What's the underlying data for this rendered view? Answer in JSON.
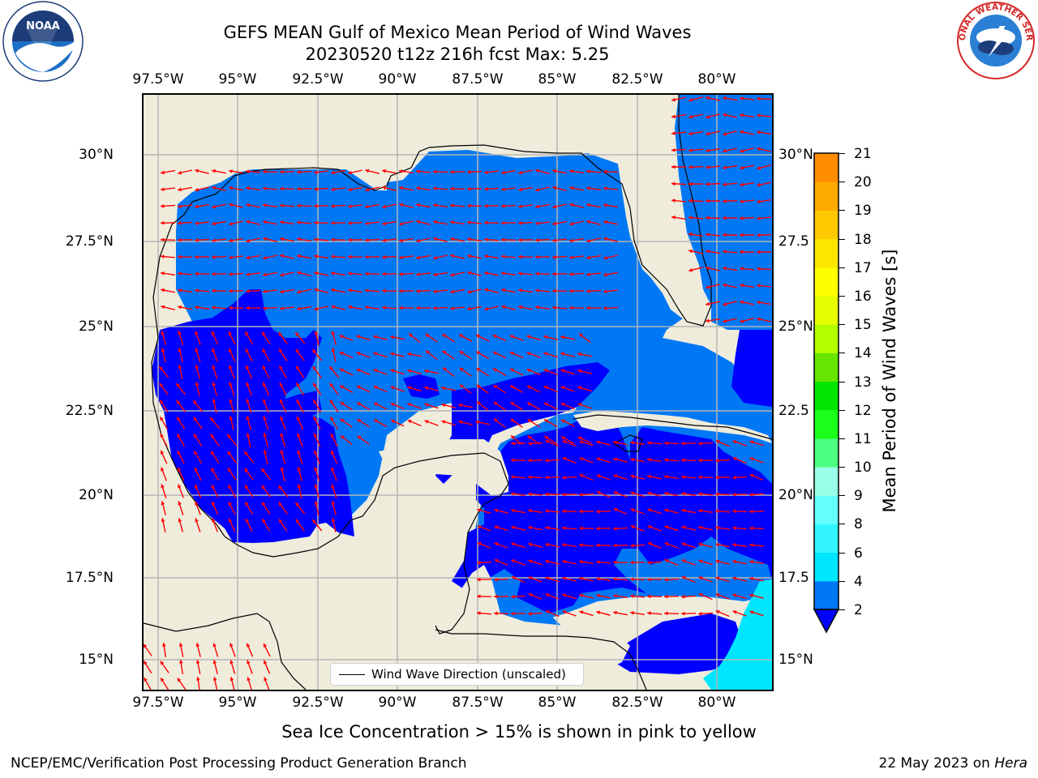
{
  "title": {
    "line1": "GEFS MEAN Gulf of Mexico Mean Period of Wind Waves",
    "line2": "20230520 t12z 216h fcst   Max: 5.25"
  },
  "logos": {
    "left": {
      "name": "noaa-logo",
      "text": "NOAA"
    },
    "right": {
      "name": "national-weather-service-logo",
      "text": "NATIONAL WEATHER SERVICE"
    }
  },
  "map": {
    "lon_labels": [
      "97.5°W",
      "95°W",
      "92.5°W",
      "90°W",
      "87.5°W",
      "85°W",
      "82.5°W",
      "80°W"
    ],
    "lat_labels_left": [
      "30°N",
      "27.5°N",
      "25°N",
      "22.5°N",
      "20°N",
      "17.5°N",
      "15°N"
    ],
    "lat_labels_right": [
      "30°N",
      "27.5",
      "25°N",
      "22.5",
      "20°N",
      "17.5",
      "15°N"
    ],
    "extent": {
      "lon_min": -98.0,
      "lon_max": -78.3,
      "lat_min": 14.1,
      "lat_max": 31.8
    },
    "land_color": "#efecdc",
    "arrow_color": "#ff0000",
    "legend_label": "Wind Wave Direction (unscaled)"
  },
  "colorbar": {
    "title": "Mean Period of Wind Waves [s]",
    "ticks": [
      "2",
      "4",
      "6",
      "8",
      "9",
      "10",
      "11",
      "12",
      "13",
      "14",
      "15",
      "16",
      "17",
      "18",
      "19",
      "20",
      "21"
    ],
    "colors": [
      "#0078f5",
      "#00e6ff",
      "#33f5ff",
      "#66ffff",
      "#99ffe6",
      "#4dff80",
      "#1aff1a",
      "#00e600",
      "#66e600",
      "#b3ff00",
      "#e6ff00",
      "#ffff00",
      "#ffe600",
      "#ffc800",
      "#ffaa00",
      "#ff8c00",
      "#ff5a00",
      "#ff3300",
      "#ff0000"
    ],
    "extend_color": "#0000ff"
  },
  "chart_data": {
    "type": "heatmap",
    "title": "GEFS MEAN Gulf of Mexico Mean Period of Wind Waves",
    "subtitle": "20230520 t12z 216h fcst   Max: 5.25",
    "variable": "Mean Period of Wind Waves [s]",
    "max_value": 5.25,
    "levels": [
      2,
      4,
      6,
      8,
      9,
      10,
      11,
      12,
      13,
      14,
      15,
      16,
      17,
      18,
      19,
      20,
      21
    ],
    "xlim": [
      -98.0,
      -78.3
    ],
    "ylim": [
      14.1,
      31.8
    ],
    "regions": [
      {
        "category": "< 2",
        "color": "#0000ff",
        "areas": [
          "western Gulf 19–25.5°N",
          "Bay of Campeche",
          "eastern Yucatan Channel / NW Caribbean",
          "Gulf of Honduras",
          "Pacific coast SW corner"
        ]
      },
      {
        "category": "2–4",
        "color": "#0078f5",
        "areas": [
          "northern and central Gulf",
          "Florida Straits / Atlantic east of Florida",
          "central Caribbean"
        ]
      },
      {
        "category": "4–6",
        "color": "#00e6ff",
        "areas": [
          "southeast corner near 15–17°N, 79°W"
        ]
      }
    ]
  },
  "footer": {
    "sea_ice_note": "Sea Ice Concentration > 15% is shown in pink to yellow",
    "credit": "NCEP/EMC/Verification Post Processing Product Generation Branch",
    "date_prefix": "22 May 2023 on ",
    "host": "Hera"
  }
}
